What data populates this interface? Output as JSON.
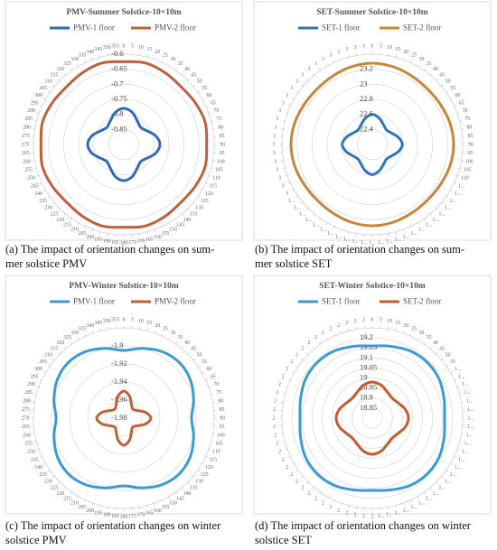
{
  "chart_data": [
    {
      "type": "radar",
      "title": "PMV-Summer Solstice-10×10m",
      "x": [
        0,
        15,
        30,
        45,
        60,
        75,
        90,
        105,
        120,
        135,
        150,
        165,
        180,
        195,
        210,
        225,
        240,
        255,
        270,
        285,
        300,
        315,
        330,
        345
      ],
      "series": [
        {
          "name": "PMV-1 floor",
          "color": "#2f6bb8",
          "values": [
            -0.78,
            -0.79,
            -0.81,
            -0.82,
            -0.81,
            -0.79,
            -0.78,
            -0.79,
            -0.81,
            -0.82,
            -0.81,
            -0.79,
            -0.78,
            -0.79,
            -0.81,
            -0.82,
            -0.81,
            -0.79,
            -0.78,
            -0.79,
            -0.81,
            -0.82,
            -0.81,
            -0.79
          ]
        },
        {
          "name": "PMV-2 floor",
          "color": "#c0603a",
          "values": [
            -0.625,
            -0.62,
            -0.625,
            -0.63,
            -0.625,
            -0.62,
            -0.625,
            -0.62,
            -0.625,
            -0.63,
            -0.625,
            -0.62,
            -0.625,
            -0.62,
            -0.625,
            -0.63,
            -0.625,
            -0.62,
            -0.625,
            -0.62,
            -0.625,
            -0.63,
            -0.625,
            -0.62
          ]
        }
      ],
      "ylim": [
        -0.9,
        -0.6
      ],
      "yticks": [
        -0.85,
        -0.8,
        -0.75,
        -0.7,
        -0.65,
        -0.6
      ],
      "xticks": [
        0,
        5,
        10,
        15,
        20,
        25,
        30,
        35,
        40,
        45,
        50,
        55,
        60,
        65,
        70,
        75,
        80,
        85,
        90,
        95,
        100,
        105,
        110,
        115,
        120,
        125,
        130,
        135,
        140,
        145,
        150,
        155,
        160,
        165,
        170,
        175,
        180,
        185,
        190,
        195,
        200,
        205,
        210,
        215,
        220,
        225,
        230,
        235,
        240,
        245,
        250,
        255,
        260,
        265,
        270,
        275,
        280,
        285,
        290,
        295,
        300,
        305,
        310,
        315,
        320,
        325,
        330,
        335,
        340,
        345,
        350,
        355
      ],
      "caption": [
        "(a) The impact of orientation changes on sum-",
        "mer solstice PMV"
      ]
    },
    {
      "type": "radar",
      "title": "SET-Summer Solstice-10×10m",
      "x": [
        0,
        15,
        30,
        45,
        60,
        75,
        90,
        105,
        120,
        135,
        150,
        165,
        180,
        195,
        210,
        225,
        240,
        255,
        270,
        285,
        300,
        315,
        330,
        345
      ],
      "series": [
        {
          "name": "SET-1 floor",
          "color": "#2e75b6",
          "values": [
            22.6,
            22.56,
            22.5,
            22.47,
            22.5,
            22.56,
            22.6,
            22.56,
            22.5,
            22.47,
            22.5,
            22.56,
            22.6,
            22.56,
            22.5,
            22.47,
            22.5,
            22.56,
            22.6,
            22.56,
            22.5,
            22.47,
            22.5,
            22.56
          ]
        },
        {
          "name": "SET-2 floor",
          "color": "#c8853a",
          "values": [
            23.28,
            23.27,
            23.25,
            23.24,
            23.25,
            23.27,
            23.28,
            23.27,
            23.25,
            23.24,
            23.25,
            23.27,
            23.28,
            23.27,
            23.25,
            23.24,
            23.25,
            23.27,
            23.28,
            23.27,
            23.25,
            23.24,
            23.25,
            23.27
          ]
        }
      ],
      "ylim": [
        22.2,
        23.4
      ],
      "yticks": [
        22.4,
        22.6,
        22.8,
        23,
        23.2
      ],
      "xticks": [
        0,
        5,
        10,
        15,
        20,
        25,
        30,
        35,
        40,
        45,
        50,
        55,
        60,
        65,
        70,
        75,
        80,
        85,
        90,
        95,
        100,
        105,
        110,
        {
          "value": 115,
          "label": "1..."
        },
        {
          "value": 120,
          "label": "1..."
        },
        {
          "value": 125,
          "label": "1..."
        },
        {
          "value": 130,
          "label": "1..."
        },
        {
          "value": 135,
          "label": "1..."
        },
        {
          "value": 140,
          "label": "1..."
        },
        {
          "value": 145,
          "label": "1..."
        },
        {
          "value": 150,
          "label": "1..."
        },
        {
          "value": 155,
          "label": "1..."
        },
        {
          "value": 160,
          "label": "1..."
        },
        {
          "value": 165,
          "label": "1..."
        },
        {
          "value": 170,
          "label": "1..."
        },
        {
          "value": 175,
          "label": "1..."
        },
        {
          "value": 180,
          "label": "1..."
        },
        {
          "value": 185,
          "label": "1..."
        },
        {
          "value": 190,
          "label": "1..."
        },
        {
          "value": 195,
          "label": "1..."
        },
        {
          "value": 200,
          "label": "1..."
        },
        {
          "value": 205,
          "label": "1..."
        },
        {
          "value": 210,
          "label": "1..."
        },
        {
          "value": 215,
          "label": "1..."
        },
        {
          "value": 220,
          "label": "1..."
        },
        {
          "value": 225,
          "label": "1..."
        },
        {
          "value": 230,
          "label": "1..."
        },
        {
          "value": 235,
          "label": "1..."
        },
        {
          "value": 240,
          "label": "3"
        },
        {
          "value": 245,
          "label": "3"
        },
        {
          "value": 250,
          "label": "3"
        },
        {
          "value": 255,
          "label": "3"
        },
        {
          "value": 260,
          "label": "3"
        },
        {
          "value": 265,
          "label": "3"
        },
        {
          "value": 270,
          "label": "3"
        },
        {
          "value": 275,
          "label": "3"
        },
        {
          "value": 280,
          "label": "3"
        },
        {
          "value": 285,
          "label": "3"
        },
        {
          "value": 290,
          "label": "3"
        },
        {
          "value": 295,
          "label": "3"
        },
        {
          "value": 300,
          "label": "3"
        },
        {
          "value": 305,
          "label": "3"
        },
        {
          "value": 310,
          "label": "3"
        },
        {
          "value": 315,
          "label": "3"
        },
        {
          "value": 320,
          "label": "3"
        },
        {
          "value": 325,
          "label": "3"
        },
        {
          "value": 330,
          "label": "3"
        },
        {
          "value": 335,
          "label": "3"
        },
        {
          "value": 340,
          "label": "3"
        },
        {
          "value": 345,
          "label": "3"
        },
        {
          "value": 350,
          "label": "3"
        },
        {
          "value": 355,
          "label": "3"
        }
      ],
      "caption": [
        "(b) The impact of orientation changes on sum-",
        "mer solstice SET"
      ]
    },
    {
      "type": "radar",
      "title": "PMV-Winter Solstice-10×10m",
      "x": [
        0,
        15,
        30,
        45,
        60,
        75,
        90,
        105,
        120,
        135,
        150,
        165,
        180,
        195,
        210,
        225,
        240,
        255,
        270,
        285,
        300,
        315,
        330,
        345
      ],
      "series": [
        {
          "name": "PMV-1 floor",
          "color": "#3a9ad6",
          "values": [
            -1.905,
            -1.9,
            -1.895,
            -1.893,
            -1.895,
            -1.9,
            -1.905,
            -1.9,
            -1.895,
            -1.893,
            -1.895,
            -1.9,
            -1.905,
            -1.9,
            -1.895,
            -1.893,
            -1.895,
            -1.9,
            -1.905,
            -1.9,
            -1.895,
            -1.893,
            -1.895,
            -1.9
          ]
        },
        {
          "name": "PMV-2 floor",
          "color": "#c0603a",
          "values": [
            -1.95,
            -1.955,
            -1.963,
            -1.966,
            -1.963,
            -1.955,
            -1.95,
            -1.955,
            -1.963,
            -1.966,
            -1.963,
            -1.955,
            -1.95,
            -1.955,
            -1.963,
            -1.966,
            -1.963,
            -1.955,
            -1.95,
            -1.955,
            -1.963,
            -1.966,
            -1.963,
            -1.955
          ]
        }
      ],
      "ylim": [
        -1.98,
        -1.88
      ],
      "yticks": [
        -1.98,
        -1.96,
        -1.94,
        -1.92,
        -1.9
      ],
      "xticks": [
        0,
        5,
        10,
        15,
        20,
        25,
        30,
        35,
        40,
        45,
        50,
        55,
        60,
        65,
        70,
        75,
        80,
        85,
        90,
        95,
        100,
        105,
        110,
        115,
        120,
        125,
        130,
        135,
        140,
        145,
        150,
        155,
        160,
        165,
        170,
        175,
        180,
        185,
        190,
        195,
        200,
        205,
        210,
        215,
        220,
        225,
        230,
        235,
        240,
        245,
        250,
        255,
        260,
        265,
        270,
        275,
        280,
        285,
        290,
        295,
        300,
        305,
        310,
        315,
        320,
        325,
        330,
        335,
        340,
        345,
        350,
        355
      ],
      "caption": [
        "(c) The impact of orientation changes on winter",
        "solstice PMV"
      ]
    },
    {
      "type": "radar",
      "title": "SET-Winter Solstice-10×10m",
      "x": [
        0,
        15,
        30,
        45,
        60,
        75,
        90,
        105,
        120,
        135,
        150,
        165,
        180,
        195,
        210,
        225,
        240,
        255,
        270,
        285,
        300,
        315,
        330,
        345
      ],
      "series": [
        {
          "name": "SET-1 floor",
          "color": "#3a9ad6",
          "values": [
            19.16,
            19.17,
            19.185,
            19.19,
            19.185,
            19.17,
            19.16,
            19.17,
            19.185,
            19.19,
            19.185,
            19.17,
            19.16,
            19.17,
            19.185,
            19.19,
            19.185,
            19.17,
            19.16,
            19.17,
            19.185,
            19.19,
            19.185,
            19.17
          ]
        },
        {
          "name": "SET-2 floor",
          "color": "#c55a2b",
          "values": [
            18.98,
            18.97,
            18.95,
            18.94,
            18.95,
            18.97,
            18.98,
            18.97,
            18.95,
            18.94,
            18.95,
            18.97,
            18.98,
            18.97,
            18.95,
            18.94,
            18.95,
            18.97,
            18.98,
            18.97,
            18.95,
            18.94,
            18.95,
            18.97
          ]
        }
      ],
      "ylim": [
        18.8,
        19.25
      ],
      "yticks": [
        18.85,
        18.9,
        18.95,
        19,
        19.05,
        19.1,
        19.15,
        19.2
      ],
      "xticks": [
        0,
        5,
        10,
        15,
        20,
        25,
        30,
        35,
        40,
        45,
        50,
        55,
        {
          "value": 60,
          "label": "1..."
        },
        {
          "value": 65,
          "label": "1..."
        },
        {
          "value": 70,
          "label": "1..."
        },
        {
          "value": 75,
          "label": "1..."
        },
        {
          "value": 80,
          "label": "1..."
        },
        {
          "value": 85,
          "label": "1..."
        },
        {
          "value": 90,
          "label": "1..."
        },
        {
          "value": 95,
          "label": "1..."
        },
        {
          "value": 100,
          "label": "1..."
        },
        {
          "value": 105,
          "label": "1..."
        },
        {
          "value": 110,
          "label": "1..."
        },
        {
          "value": 115,
          "label": "1..."
        },
        {
          "value": 120,
          "label": "1..."
        },
        {
          "value": 125,
          "label": "1..."
        },
        {
          "value": 130,
          "label": "1..."
        },
        {
          "value": 135,
          "label": "1..."
        },
        {
          "value": 140,
          "label": "1..."
        },
        {
          "value": 145,
          "label": "1..."
        },
        {
          "value": 150,
          "label": "1..."
        },
        {
          "value": 155,
          "label": "1..."
        },
        {
          "value": 160,
          "label": "1..."
        },
        {
          "value": 165,
          "label": "1..."
        },
        {
          "value": 170,
          "label": "1..."
        },
        {
          "value": 175,
          "label": "1..."
        },
        {
          "value": 180,
          "label": "2"
        },
        {
          "value": 185,
          "label": "2"
        },
        {
          "value": 190,
          "label": "2"
        },
        {
          "value": 195,
          "label": "2"
        },
        {
          "value": 200,
          "label": "2"
        },
        {
          "value": 205,
          "label": "2"
        },
        {
          "value": 210,
          "label": "2"
        },
        {
          "value": 215,
          "label": "2"
        },
        {
          "value": 220,
          "label": "2"
        },
        {
          "value": 225,
          "label": "2"
        },
        {
          "value": 230,
          "label": "2"
        },
        {
          "value": 235,
          "label": "2"
        },
        {
          "value": 240,
          "label": "2"
        },
        {
          "value": 245,
          "label": "2"
        },
        {
          "value": 250,
          "label": "2"
        },
        {
          "value": 255,
          "label": "2"
        },
        {
          "value": 260,
          "label": "2"
        },
        {
          "value": 265,
          "label": "2"
        },
        {
          "value": 270,
          "label": "2"
        },
        {
          "value": 275,
          "label": "2"
        },
        {
          "value": 280,
          "label": "2"
        },
        {
          "value": 285,
          "label": "2"
        },
        {
          "value": 290,
          "label": "2"
        },
        {
          "value": 295,
          "label": "2"
        },
        {
          "value": 300,
          "label": "2"
        },
        {
          "value": 305,
          "label": "2"
        },
        {
          "value": 310,
          "label": "2"
        },
        {
          "value": 315,
          "label": "2"
        },
        {
          "value": 320,
          "label": "2"
        },
        {
          "value": 325,
          "label": "2"
        },
        {
          "value": 330,
          "label": "2"
        },
        {
          "value": 335,
          "label": "2"
        },
        {
          "value": 340,
          "label": "2"
        },
        {
          "value": 345,
          "label": "2"
        },
        {
          "value": 350,
          "label": "2"
        },
        {
          "value": 355,
          "label": "2"
        }
      ],
      "caption": [
        "(d) The impact of orientation changes on winter",
        "solstice SET"
      ]
    }
  ]
}
